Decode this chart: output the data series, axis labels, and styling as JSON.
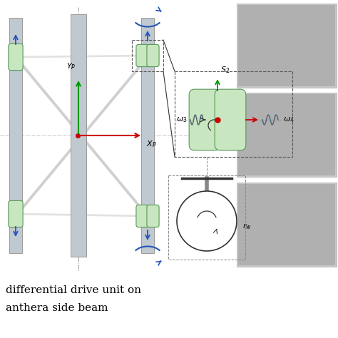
{
  "bg_color": "#ffffff",
  "title_line1": "differential drive unit on",
  "title_line2": "anthera side beam",
  "title_fontsize": 11,
  "fig_width": 4.74,
  "fig_height": 4.74,
  "dpi": 100,
  "beam_color": "#c0c8d0",
  "beam_edge_color": "#999999",
  "roller_fill": "#c8e6c0",
  "roller_edge": "#559955",
  "axis_color_y": "#009900",
  "axis_color_x": "#cc0000",
  "arrow_blue": "#2255bb",
  "dashed_line_color": "#666666",
  "center_dot_color": "#cc0000",
  "photo_color": "#888888",
  "cable_color": "#d0d0d0"
}
